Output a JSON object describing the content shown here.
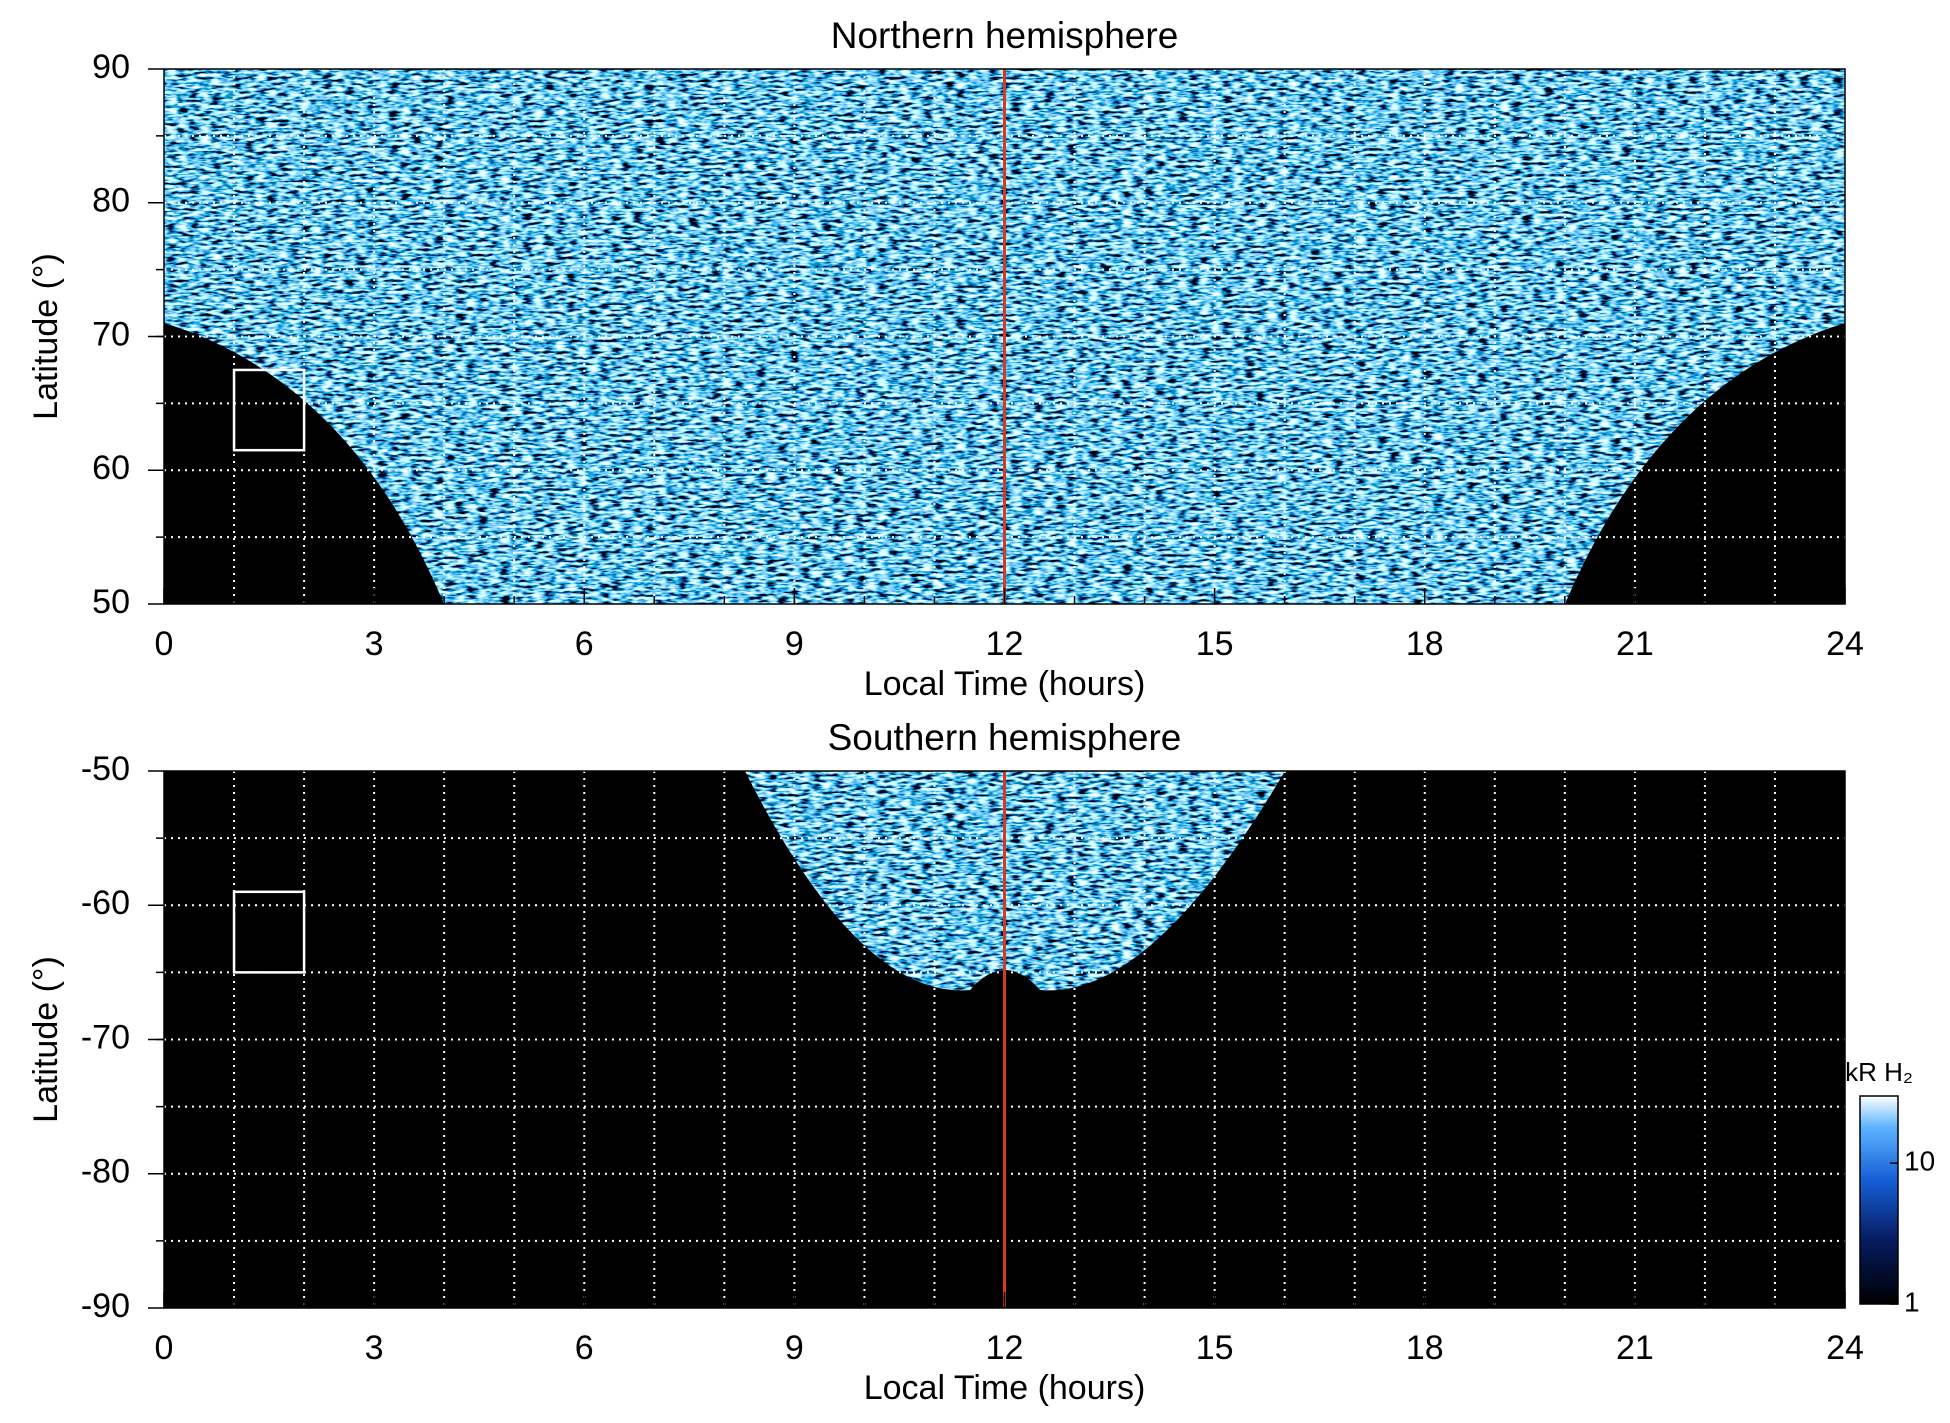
{
  "chart_data": [
    {
      "type": "heatmap",
      "title": "Northern hemisphere",
      "xlabel": "Local Time (hours)",
      "ylabel": "Latitude (°)",
      "xlim": [
        0,
        24
      ],
      "xticks": [
        0,
        3,
        6,
        9,
        12,
        15,
        18,
        21,
        24
      ],
      "ylim": [
        50,
        90
      ],
      "yticks": [
        50,
        60,
        70,
        80,
        90
      ],
      "grid": true,
      "xgrid": [
        1,
        2,
        3,
        4,
        5,
        6,
        7,
        8,
        9,
        10,
        11,
        12,
        13,
        14,
        15,
        16,
        17,
        18,
        19,
        20,
        21,
        22,
        23
      ],
      "ygrid": [
        55,
        60,
        65,
        70,
        75,
        80,
        85
      ],
      "vline": 12,
      "vline_color": "#d9381e",
      "box": {
        "x": [
          1,
          2
        ],
        "y": [
          61.5,
          67.5
        ]
      }
    },
    {
      "type": "heatmap",
      "title": "Southern hemisphere",
      "xlabel": "Local Time (hours)",
      "ylabel": "Latitude (°)",
      "xlim": [
        0,
        24
      ],
      "xticks": [
        0,
        3,
        6,
        9,
        12,
        15,
        18,
        21,
        24
      ],
      "ylim": [
        -90,
        -50
      ],
      "yticks": [
        -90,
        -80,
        -70,
        -60,
        -50
      ],
      "grid": true,
      "xgrid": [
        1,
        2,
        3,
        4,
        5,
        6,
        7,
        8,
        9,
        10,
        11,
        12,
        13,
        14,
        15,
        16,
        17,
        18,
        19,
        20,
        21,
        22,
        23
      ],
      "ygrid": [
        -85,
        -80,
        -75,
        -70,
        -65,
        -60,
        -55
      ],
      "vline": 12,
      "vline_color": "#d9381e",
      "box": {
        "x": [
          1,
          2
        ],
        "y": [
          -65,
          -59
        ]
      },
      "colorbar": {
        "label": "kR H₂",
        "lim": [
          1,
          30
        ],
        "ticks": [
          1,
          10
        ],
        "log": true
      }
    }
  ]
}
